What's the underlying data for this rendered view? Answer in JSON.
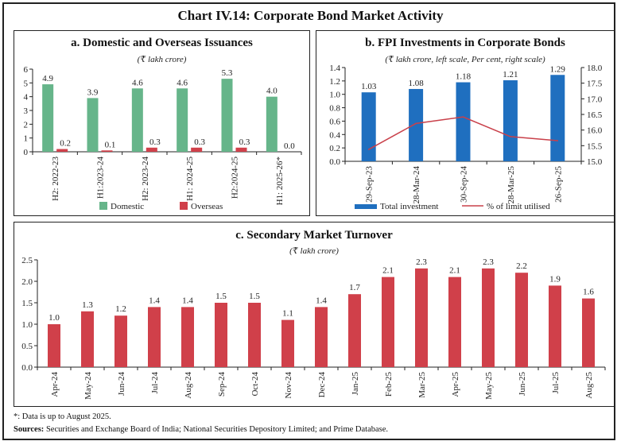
{
  "title": "Chart IV.14: Corporate Bond Market Activity",
  "colors": {
    "domestic": "#66b58a",
    "overseas": "#d0404a",
    "total_investment": "#1f6fbf",
    "limit_line": "#c9404a",
    "turnover": "#d0404a"
  },
  "chart_data": [
    {
      "type": "bar",
      "title": "a. Domestic and Overseas Issuances",
      "subtitle": "(₹ lakh crore)",
      "categories": [
        "H2: 2022-23",
        "H1:2023-24",
        "H2: 2023-24",
        "H1: 2024-25",
        "H2:2024-25",
        "H1: 2025-26*"
      ],
      "series": [
        {
          "name": "Domestic",
          "values": [
            4.9,
            3.9,
            4.6,
            4.6,
            5.3,
            4.0
          ],
          "labels": [
            "4.9",
            "3.9",
            "4.6",
            "4.6",
            "5.3",
            "4.0"
          ]
        },
        {
          "name": "Overseas",
          "values": [
            0.2,
            0.1,
            0.3,
            0.3,
            0.3,
            0.0
          ],
          "labels": [
            "0.2",
            "0.1",
            "0.3",
            "0.3",
            "0.3",
            "0.0"
          ]
        }
      ],
      "ylim": [
        0,
        6
      ],
      "yticks": [
        "0",
        "1",
        "2",
        "3",
        "4",
        "5",
        "6"
      ],
      "legend": "bottom"
    },
    {
      "type": "bar+line",
      "title": "b. FPI Investments in Corporate Bonds",
      "subtitle": "(₹ lakh crore, left scale, Per cent, right scale)",
      "categories": [
        "29-Sep-23",
        "28-Mar-24",
        "30-Sep-24",
        "28-Mar-25",
        "26-Sep-25"
      ],
      "series": [
        {
          "name": "Total investment",
          "axis": "left",
          "values": [
            1.03,
            1.08,
            1.18,
            1.21,
            1.29
          ],
          "labels": [
            "1.03",
            "1.08",
            "1.18",
            "1.21",
            "1.29"
          ]
        },
        {
          "name": "% of limit utilised",
          "axis": "right",
          "values": [
            15.38,
            16.21,
            16.42,
            15.79,
            15.66
          ]
        }
      ],
      "ylim": [
        0,
        1.4
      ],
      "yticks": [
        "0.0",
        "0.2",
        "0.4",
        "0.6",
        "0.8",
        "1.0",
        "1.2",
        "1.4"
      ],
      "y2lim": [
        15.0,
        18.0
      ],
      "y2ticks": [
        "15.0",
        "15.5",
        "16.0",
        "16.5",
        "17.0",
        "17.5",
        "18.0"
      ],
      "legend": "bottom"
    },
    {
      "type": "bar",
      "title": "c. Secondary Market Turnover",
      "subtitle": "(₹ lakh crore)",
      "categories": [
        "Apr-24",
        "May-24",
        "Jun-24",
        "Jul-24",
        "Aug-24",
        "Sep-24",
        "Oct-24",
        "Nov-24",
        "Dec-24",
        "Jan-25",
        "Feb-25",
        "Mar-25",
        "Apr-25",
        "May-25",
        "Jun-25",
        "Jul-25",
        "Aug-25"
      ],
      "values": [
        1.0,
        1.3,
        1.2,
        1.4,
        1.4,
        1.5,
        1.5,
        1.1,
        1.4,
        1.7,
        2.1,
        2.3,
        2.1,
        2.3,
        2.2,
        1.9,
        1.6
      ],
      "labels": [
        "1.0",
        "1.3",
        "1.2",
        "1.4",
        "1.4",
        "1.5",
        "1.5",
        "1.1",
        "1.4",
        "1.7",
        "2.1",
        "2.3",
        "2.1",
        "2.3",
        "2.2",
        "1.9",
        "1.6"
      ],
      "ylim": [
        0,
        2.5
      ],
      "yticks": [
        "0.0",
        "0.5",
        "1.0",
        "1.5",
        "2.0",
        "2.5"
      ]
    }
  ],
  "footnote": "*: Data is up to August 2025.",
  "sources_label": "Sources:",
  "sources_text": " Securities and Exchange Board of India; National Securities Depository Limited; and Prime Database."
}
